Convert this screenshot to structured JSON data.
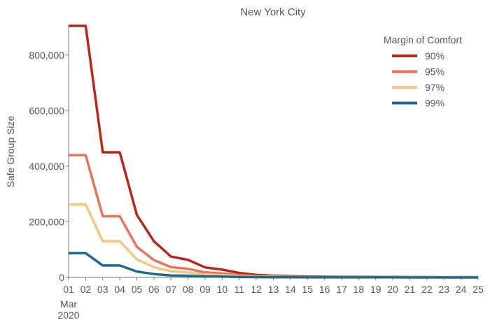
{
  "chart_data": {
    "type": "line",
    "title": "New York City",
    "ylabel": "Safe Group Size",
    "xlabel": "",
    "x_tick_labels": [
      "01",
      "02",
      "03",
      "04",
      "05",
      "06",
      "07",
      "08",
      "09",
      "10",
      "11",
      "12",
      "13",
      "14",
      "15",
      "16",
      "17",
      "18",
      "19",
      "20",
      "21",
      "22",
      "23",
      "24",
      "25"
    ],
    "x_month_label": "Mar",
    "x_year_label": "2020",
    "y_tick_labels": [
      "0",
      "200,000",
      "400,000",
      "600,000",
      "800,000"
    ],
    "ylim": [
      0,
      905000
    ],
    "xlim": [
      1,
      25
    ],
    "legend": {
      "title": "Margin of Comfort",
      "position": "top-right"
    },
    "series": [
      {
        "name": "90%",
        "color": "#b5281c",
        "x": [
          1,
          2,
          3,
          4,
          5,
          6,
          7,
          8,
          9,
          10,
          11,
          12,
          13,
          14,
          15,
          16,
          17,
          18,
          19,
          20,
          21,
          22,
          23,
          24,
          25
        ],
        "values": [
          905000,
          905000,
          450000,
          450000,
          225000,
          130000,
          75000,
          63000,
          36000,
          28000,
          16000,
          9000,
          6000,
          4500,
          3300,
          2500,
          2000,
          1800,
          1600,
          1400,
          1300,
          1200,
          1100,
          1000,
          1000
        ]
      },
      {
        "name": "95%",
        "color": "#e8735a",
        "x": [
          1,
          2,
          3,
          4,
          5,
          6,
          7,
          8,
          9,
          10,
          11,
          12,
          13,
          14,
          15,
          16,
          17,
          18,
          19,
          20,
          21,
          22,
          23,
          24,
          25
        ],
        "values": [
          440000,
          440000,
          220000,
          220000,
          110000,
          62000,
          37000,
          31000,
          18000,
          14000,
          8000,
          4500,
          3000,
          2200,
          1600,
          1200,
          1000,
          900,
          800,
          700,
          650,
          600,
          550,
          500,
          500
        ]
      },
      {
        "name": "97%",
        "color": "#f9c47e",
        "x": [
          1,
          2,
          3,
          4,
          5,
          6,
          7,
          8,
          9,
          10,
          11,
          12,
          13,
          14,
          15,
          16,
          17,
          18,
          19,
          20,
          21,
          22,
          23,
          24,
          25
        ],
        "values": [
          262000,
          262000,
          130000,
          130000,
          65000,
          37000,
          22000,
          18000,
          10500,
          8000,
          4500,
          2600,
          1800,
          1300,
          950,
          700,
          600,
          500,
          450,
          400,
          380,
          350,
          320,
          300,
          300
        ]
      },
      {
        "name": "99%",
        "color": "#1b6b8f",
        "x": [
          1,
          2,
          3,
          4,
          5,
          6,
          7,
          8,
          9,
          10,
          11,
          12,
          13,
          14,
          15,
          16,
          17,
          18,
          19,
          20,
          21,
          22,
          23,
          24,
          25
        ],
        "values": [
          87000,
          87000,
          43000,
          43000,
          21000,
          12000,
          7000,
          6000,
          3500,
          2700,
          1500,
          900,
          600,
          450,
          320,
          240,
          200,
          170,
          150,
          130,
          120,
          110,
          100,
          100,
          100
        ]
      }
    ]
  }
}
